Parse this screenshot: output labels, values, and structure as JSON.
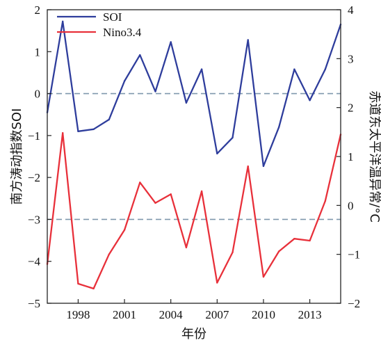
{
  "chart_data": {
    "type": "line",
    "title": "",
    "xlabel": "年份",
    "ylabel_left": "南方涛动指数SOI",
    "ylabel_right": "赤道东太平洋温异常/°C",
    "xlim": [
      1996,
      2015
    ],
    "ylim_left": [
      -5,
      2
    ],
    "ylim_right": [
      -2,
      4
    ],
    "x_ticks": [
      1998,
      2001,
      2004,
      2007,
      2010,
      2013
    ],
    "y_ticks_left": [
      -5,
      -4,
      -3,
      -2,
      -1,
      0,
      1,
      2
    ],
    "y_ticks_right": [
      -2,
      -1,
      0,
      1,
      2,
      3,
      4
    ],
    "reference_lines": [
      {
        "axis": "left",
        "value": 0
      },
      {
        "axis": "left",
        "value": -3
      }
    ],
    "grid": false,
    "legend_position": "top-left",
    "x": [
      1996,
      1997,
      1998,
      1999,
      2000,
      2001,
      2002,
      2003,
      2004,
      2005,
      2006,
      2007,
      2008,
      2009,
      2010,
      2011,
      2012,
      2013,
      2014,
      2015
    ],
    "series": [
      {
        "name": "SOI",
        "axis": "left",
        "color": "#2e3d9c",
        "values": [
          -0.45,
          1.72,
          -0.9,
          -0.85,
          -0.62,
          0.3,
          0.92,
          0.05,
          1.23,
          -0.22,
          0.58,
          -1.43,
          -1.05,
          1.28,
          -1.73,
          -0.8,
          0.58,
          -0.16,
          0.58,
          1.65
        ]
      },
      {
        "name": "Nino3.4",
        "axis": "right",
        "color": "#e8303a",
        "values": [
          -1.2,
          1.48,
          -1.6,
          -1.7,
          -1.0,
          -0.5,
          0.47,
          0.05,
          0.23,
          -0.86,
          0.29,
          -1.58,
          -0.96,
          0.8,
          -1.46,
          -0.94,
          -0.68,
          -0.72,
          0.09,
          1.45
        ]
      }
    ]
  },
  "colors": {
    "soi": "#2e3d9c",
    "nino": "#e8303a",
    "reference_line": "#7f97ad",
    "axis": "#222222"
  }
}
